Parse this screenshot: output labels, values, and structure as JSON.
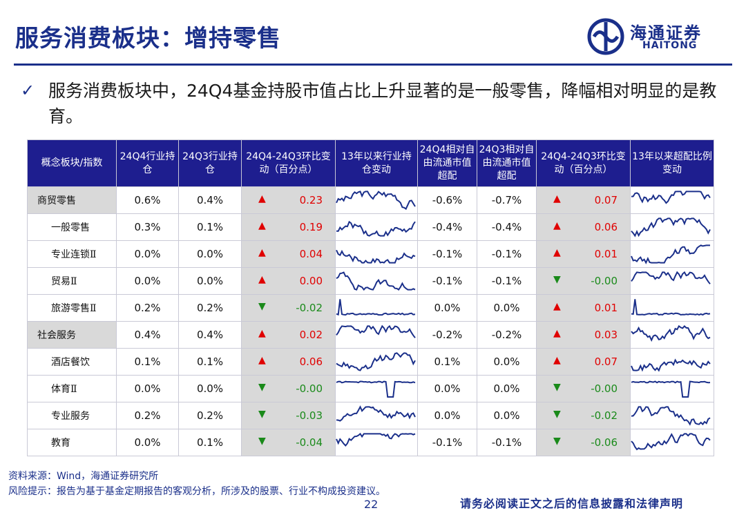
{
  "title": "服务消费板块：增持零售",
  "logo": {
    "cn": "海通证券",
    "en": "HAITONG"
  },
  "bullet": "服务消费板块中，24Q4基金持股市值占比上升显著的是一般零售，降幅相对明显的是教育。",
  "table": {
    "headers": [
      "概念板块/指数",
      "24Q4行业持仓",
      "24Q3行业持仓",
      "24Q4-24Q3环比变动（百分点）",
      "13年以来行业持仓变动",
      "24Q4相对自由流通市值超配",
      "24Q3相对自由流通市值超配",
      "24Q4-24Q3环比变动（百分点）",
      "13年以来超配比例变动"
    ],
    "rows": [
      {
        "name": "商贸零售",
        "level": "parent",
        "q4": "0.6%",
        "q3": "0.4%",
        "chg_dir": "up",
        "chg": "0.23",
        "ow_q4": "-0.6%",
        "ow_q3": "-0.7%",
        "ow_dir": "up",
        "ow_chg": "0.07"
      },
      {
        "name": "一般零售",
        "level": "child",
        "q4": "0.3%",
        "q3": "0.1%",
        "chg_dir": "up",
        "chg": "0.19",
        "ow_q4": "-0.4%",
        "ow_q3": "-0.4%",
        "ow_dir": "up",
        "ow_chg": "0.06"
      },
      {
        "name": "专业连锁Ⅱ",
        "level": "child",
        "q4": "0.0%",
        "q3": "0.0%",
        "chg_dir": "up",
        "chg": "0.04",
        "ow_q4": "-0.1%",
        "ow_q3": "-0.1%",
        "ow_dir": "up",
        "ow_chg": "0.01"
      },
      {
        "name": "贸易Ⅱ",
        "level": "child",
        "q4": "0.0%",
        "q3": "0.0%",
        "chg_dir": "up",
        "chg": "0.00",
        "ow_q4": "-0.1%",
        "ow_q3": "-0.1%",
        "ow_dir": "down",
        "ow_chg": "-0.00"
      },
      {
        "name": "旅游零售Ⅱ",
        "level": "child",
        "q4": "0.2%",
        "q3": "0.2%",
        "chg_dir": "down",
        "chg": "-0.02",
        "ow_q4": "0.0%",
        "ow_q3": "0.0%",
        "ow_dir": "up",
        "ow_chg": "0.01"
      },
      {
        "name": "社会服务",
        "level": "parent",
        "q4": "0.4%",
        "q3": "0.4%",
        "chg_dir": "up",
        "chg": "0.02",
        "ow_q4": "-0.2%",
        "ow_q3": "-0.2%",
        "ow_dir": "up",
        "ow_chg": "0.03"
      },
      {
        "name": "酒店餐饮",
        "level": "child",
        "q4": "0.1%",
        "q3": "0.1%",
        "chg_dir": "up",
        "chg": "0.06",
        "ow_q4": "0.1%",
        "ow_q3": "0.0%",
        "ow_dir": "up",
        "ow_chg": "0.07"
      },
      {
        "name": "体育Ⅱ",
        "level": "child",
        "q4": "0.0%",
        "q3": "0.0%",
        "chg_dir": "down",
        "chg": "-0.00",
        "ow_q4": "0.0%",
        "ow_q3": "0.0%",
        "ow_dir": "down",
        "ow_chg": "-0.00"
      },
      {
        "name": "专业服务",
        "level": "child",
        "q4": "0.2%",
        "q3": "0.2%",
        "chg_dir": "down",
        "chg": "-0.03",
        "ow_q4": "0.0%",
        "ow_q3": "0.0%",
        "ow_dir": "down",
        "ow_chg": "-0.02"
      },
      {
        "name": "教育",
        "level": "child",
        "q4": "0.0%",
        "q3": "0.1%",
        "chg_dir": "down",
        "chg": "-0.04",
        "ow_q4": "-0.1%",
        "ow_q3": "-0.1%",
        "ow_dir": "down",
        "ow_chg": "-0.06"
      }
    ]
  },
  "footer": {
    "source": "资料来源：Wind，海通证券研究所",
    "risk": "风险提示：报告为基于基金定期报告的客观分析，所涉及的股票、行业不构成投资建议。",
    "page": "22",
    "disclaimer": "请务必阅读正文之后的信息披露和法律声明"
  },
  "colors": {
    "header_bg": "#1e1e8f",
    "title": "#1a2f8a",
    "up": "#e00000",
    "down": "#1a8a1a",
    "shade": "#d9d9d9",
    "spark": "#1a2f8a"
  }
}
